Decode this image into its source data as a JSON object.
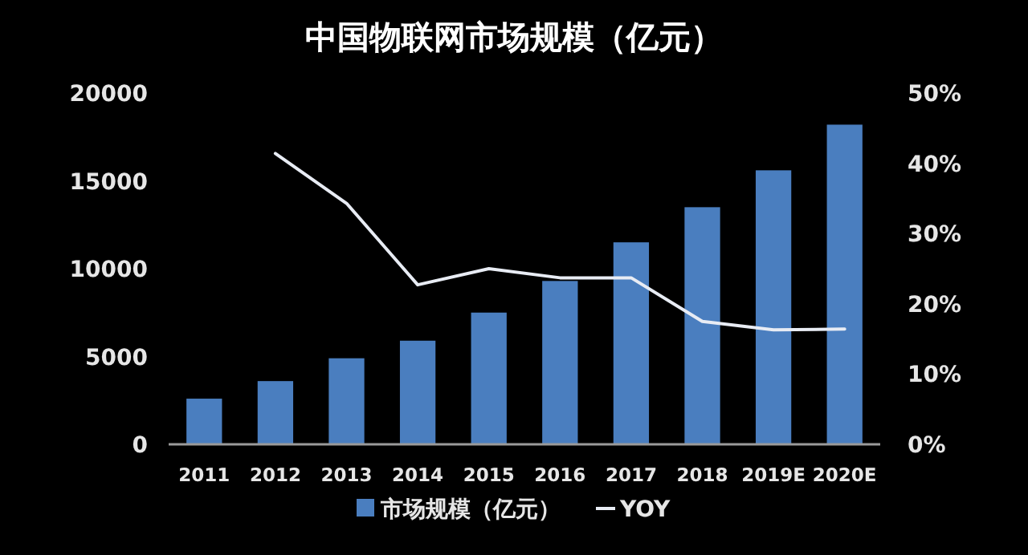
{
  "chart_data": {
    "type": "bar",
    "title": "中国物联网市场规模（亿元）",
    "categories": [
      "2011",
      "2012",
      "2013",
      "2014",
      "2015",
      "2016",
      "2017",
      "2018",
      "2019E",
      "2020E"
    ],
    "series": [
      {
        "name": "市场规模（亿元）",
        "color": "#4a7ebf",
        "values": [
          2600,
          3600,
          4900,
          5900,
          7500,
          9300,
          11500,
          13500,
          15600,
          18200
        ]
      },
      {
        "name": "YOY",
        "type": "line",
        "axis": "y2",
        "color": "#e8ecf4",
        "values": [
          null,
          41.4,
          34.3,
          22.7,
          25.0,
          23.7,
          23.7,
          17.5,
          16.3,
          16.4
        ]
      }
    ],
    "ylim": [
      0,
      20000
    ],
    "yticks": [
      0,
      5000,
      10000,
      15000,
      20000
    ],
    "y2lim": [
      0,
      50
    ],
    "y2ticks": [
      {
        "value": 0,
        "label": "0%"
      },
      {
        "value": 10,
        "label": "10%"
      },
      {
        "value": 20,
        "label": "20%"
      },
      {
        "value": 30,
        "label": "30%"
      },
      {
        "value": 40,
        "label": "40%"
      },
      {
        "value": 50,
        "label": "50%"
      }
    ],
    "grid": false,
    "legend": "bottom",
    "marker": "none"
  }
}
